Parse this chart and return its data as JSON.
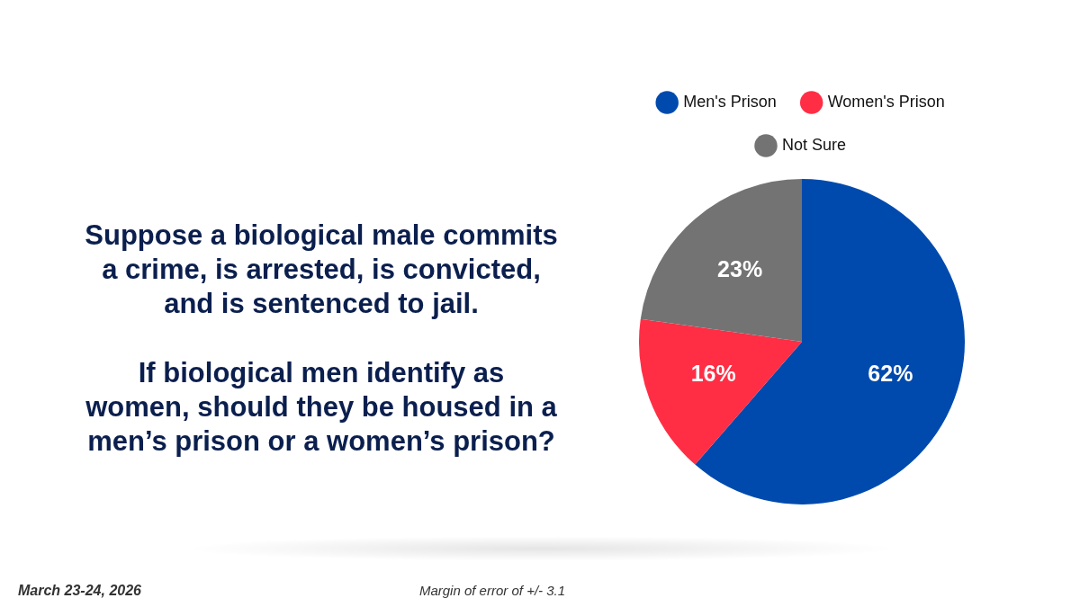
{
  "chart_data": {
    "type": "pie",
    "title": "Suppose a biological male commits\na crime, is arrested, is convicted,\nand is sentenced to jail.",
    "subtitle": "If biological men identify as\nwomen, should they be housed in a\nmen’s prison or a women’s prison?",
    "categories": [
      "Men's Prison",
      "Women's Prison",
      "Not Sure"
    ],
    "values": [
      62,
      16,
      23
    ],
    "colors": [
      "#004aad",
      "#ff2e45",
      "#737373"
    ],
    "value_labels": [
      "62%",
      "16%",
      "23%"
    ],
    "legend": "top",
    "annotations": [
      "March 23-24, 2026",
      "Margin of error of +/- 3.1"
    ]
  }
}
